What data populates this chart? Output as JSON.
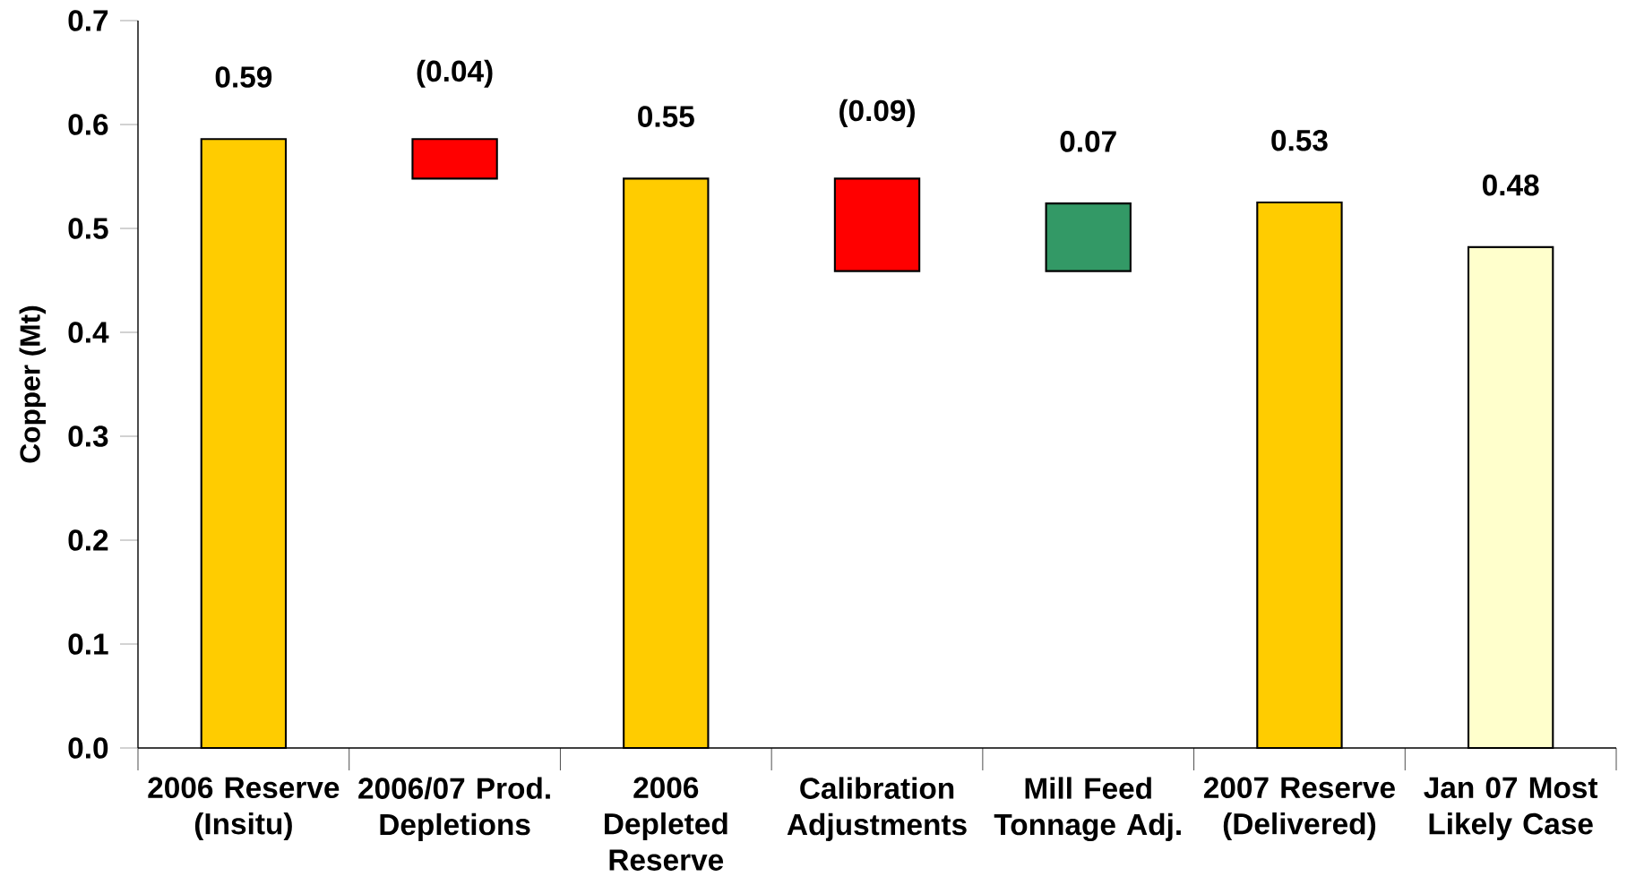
{
  "chart_data": {
    "type": "bar",
    "ylabel": "Copper (Mt)",
    "categories": [
      "2006 Reserve (Insitu)",
      "2006/07 Prod. Depletions",
      "2006 Depleted Reserve",
      "Calibration Adjustments",
      "Mill Feed Tonnage Adj.",
      "2007 Reserve (Delivered)",
      "Jan 07 Most Likely Case"
    ],
    "values": [
      0.586,
      -0.038,
      0.548,
      -0.089,
      0.065,
      0.525,
      0.482
    ],
    "base": [
      0,
      0.586,
      0,
      0.548,
      0.459,
      0,
      0
    ],
    "colors": [
      "#ffcc00",
      "#ff0000",
      "#ffcc00",
      "#ff0000",
      "#339966",
      "#ffcc00",
      "#ffffcc"
    ],
    "value_labels": [
      "0.59",
      "(0.04)",
      "0.55",
      "(0.09)",
      "0.07",
      "0.53",
      "0.48"
    ],
    "ylim": [
      0,
      0.7
    ],
    "yticks": [
      {
        "value": 0,
        "label": "0.0"
      },
      0.1,
      0.2,
      0.3,
      0.4,
      0.5,
      0.6,
      0.7
    ]
  }
}
